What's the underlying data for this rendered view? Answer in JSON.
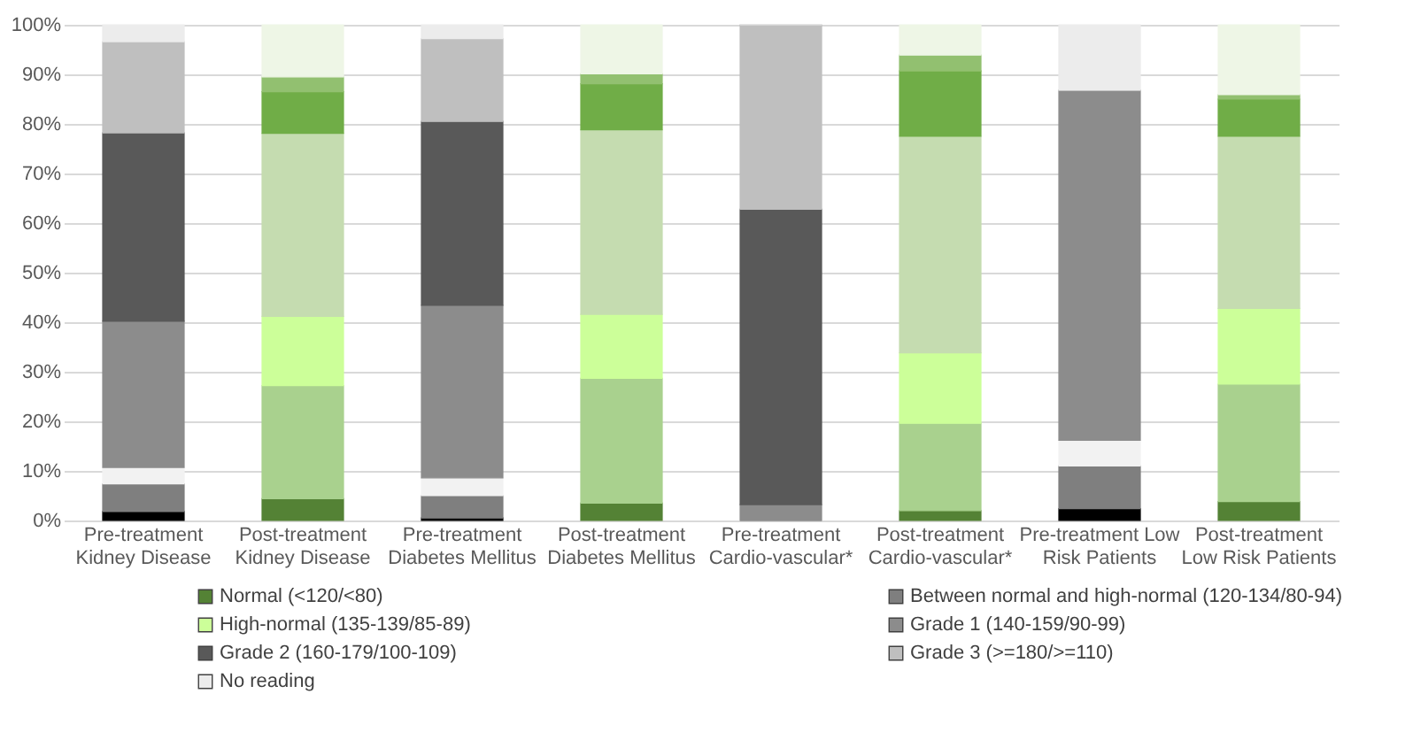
{
  "chart_data": {
    "type": "bar",
    "stacked": true,
    "categories": [
      "Pre-treatment Kidney Disease",
      "Post-treatment Kidney Disease",
      "Pre-treatment Diabetes Mellitus",
      "Post-treatment Diabetes Mellitus",
      "Pre-treatment Cardio-vascular*",
      "Post-treatment Cardio-vascular*",
      "Pre-treatment Low Risk Patients",
      "Post-treatment Low Risk Patients"
    ],
    "series": [
      {
        "name": "Normal (<120/<80)",
        "color": "#548235",
        "colors": [
          "#000000",
          "#548235",
          "#000000",
          "#548235",
          "#000000",
          "#548235",
          "#000000",
          "#548235"
        ],
        "values": [
          1.8,
          4.4,
          0.5,
          3.5,
          0,
          2.0,
          2.4,
          3.8
        ]
      },
      {
        "name": "Between normal and high-normal (120-134/80-94)",
        "color": "#7f7f7f",
        "colors": [
          "#7f7f7f",
          "#a9d18e",
          "#7f7f7f",
          "#a9d18e",
          "#7f7f7f",
          "#a9d18e",
          "#7f7f7f",
          "#a9d18e"
        ],
        "values": [
          5.6,
          22.8,
          4.5,
          25.2,
          0,
          17.6,
          8.6,
          23.7
        ]
      },
      {
        "name": "High-normal (135-139/85-89)",
        "color": "#ccff99",
        "colors": [
          "#f2f2f2",
          "#ccff99",
          "#f2f2f2",
          "#ccff99",
          "#f2f2f2",
          "#ccff99",
          "#f2f2f2",
          "#ccff99"
        ],
        "values": [
          3.3,
          14.0,
          3.6,
          12.9,
          0,
          14.2,
          5.2,
          15.3
        ]
      },
      {
        "name": "Grade 1 (140-159/90-99)",
        "color": "#8c8c8c",
        "colors": [
          "#8c8c8c",
          "#c5dcb0",
          "#8c8c8c",
          "#c5dcb0",
          "#8c8c8c",
          "#c5dcb0",
          "#8c8c8c",
          "#c5dcb0"
        ],
        "values": [
          29.5,
          36.9,
          34.8,
          37.2,
          3.2,
          43.7,
          70.6,
          34.7
        ]
      },
      {
        "name": "Grade 2 (160-179/100-109)",
        "color": "#595959",
        "colors": [
          "#595959",
          "#70ad47",
          "#595959",
          "#70ad47",
          "#595959",
          "#70ad47",
          "#595959",
          "#70ad47"
        ],
        "values": [
          38.0,
          8.4,
          37.1,
          9.3,
          59.6,
          13.2,
          0,
          7.5
        ]
      },
      {
        "name": "Grade 3 (>=180/>=110)",
        "color": "#bfbfbf",
        "colors": [
          "#bfbfbf",
          "#92c070",
          "#bfbfbf",
          "#92c070",
          "#bfbfbf",
          "#92c070",
          "#bfbfbf",
          "#92c070"
        ],
        "values": [
          18.4,
          3.0,
          16.7,
          2.0,
          37.2,
          3.2,
          0,
          0.9
        ]
      },
      {
        "name": "No reading",
        "color": "#ececec",
        "colors": [
          "#ececec",
          "#eef6e6",
          "#ececec",
          "#eef6e6",
          "#ececec",
          "#eef6e6",
          "#ececec",
          "#eef6e6"
        ],
        "values": [
          3.4,
          10.5,
          2.8,
          9.9,
          0,
          6.1,
          13.2,
          14.1
        ]
      }
    ],
    "ylim": [
      0,
      100
    ],
    "yticks": [
      {
        "value": 0,
        "label": "0%"
      },
      {
        "value": 10,
        "label": "10%"
      },
      {
        "value": 20,
        "label": "20%"
      },
      {
        "value": 30,
        "label": "30%"
      },
      {
        "value": 40,
        "label": "40%"
      },
      {
        "value": 50,
        "label": "50%"
      },
      {
        "value": 60,
        "label": "60%"
      },
      {
        "value": 70,
        "label": "70%"
      },
      {
        "value": 80,
        "label": "80%"
      },
      {
        "value": 90,
        "label": "90%"
      },
      {
        "value": 100,
        "label": "100%"
      }
    ],
    "grid": "y",
    "legend": "bottom"
  }
}
